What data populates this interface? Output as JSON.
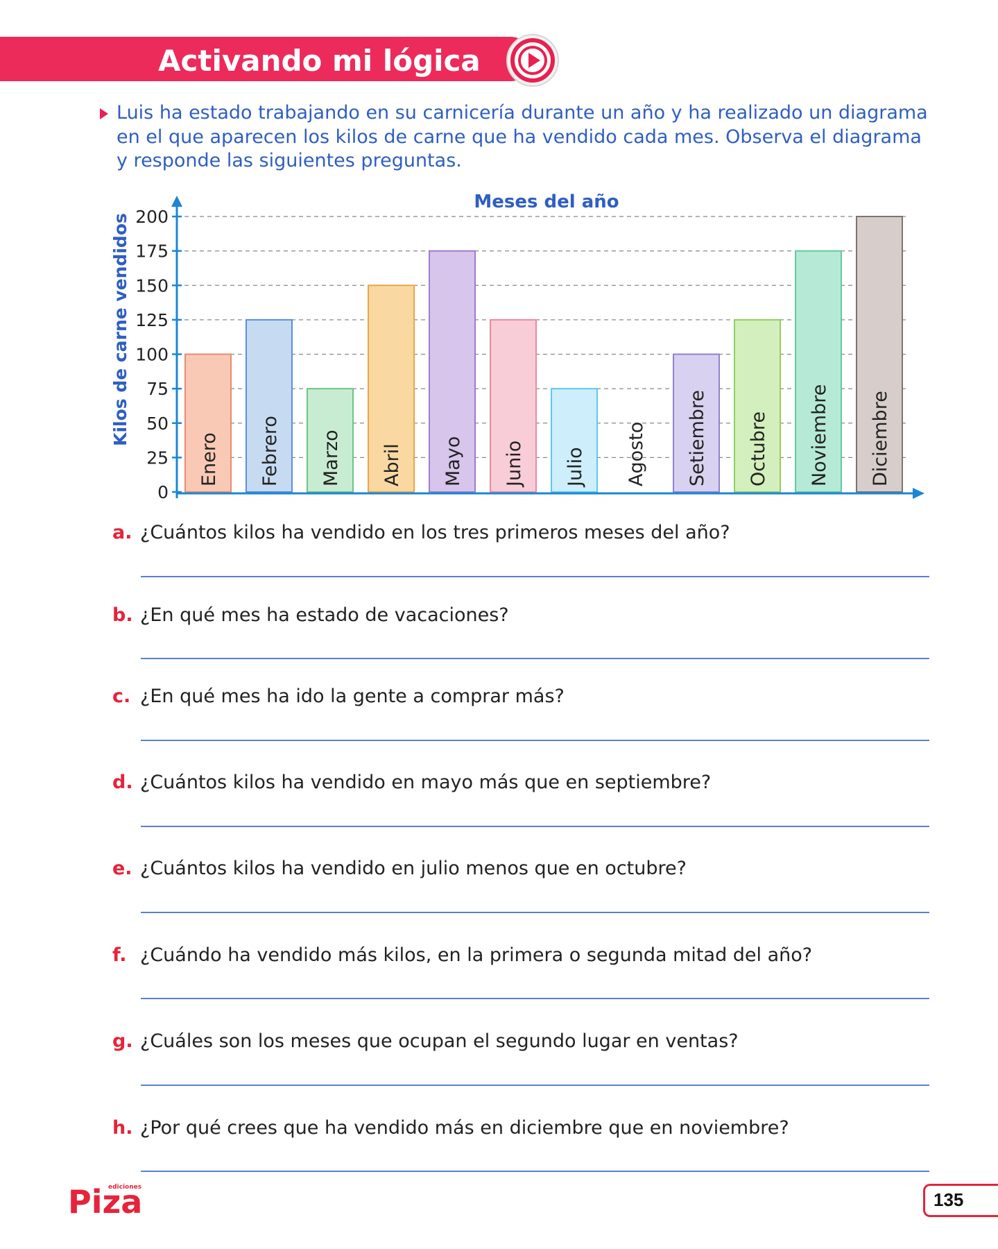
{
  "header": {
    "title": "Activando mi lógica",
    "icon": "play-icon",
    "color": "#ec2b5b"
  },
  "intro": {
    "text": "Luis ha estado trabajando en su carnicería durante un año y ha realizado un diagrama en el que aparecen los kilos de carne que ha vendido cada mes. Observa el diagrama y responde las siguientes preguntas."
  },
  "chart_data": {
    "type": "bar",
    "title": "Meses del año",
    "xlabel": "",
    "ylabel": "Kilos de carne vendidos",
    "ylim": [
      0,
      200
    ],
    "yticks": [
      0,
      25,
      50,
      75,
      100,
      125,
      150,
      175,
      200
    ],
    "grid": true,
    "categories": [
      "Enero",
      "Febrero",
      "Marzo",
      "Abril",
      "Mayo",
      "Junio",
      "Julio",
      "Agosto",
      "Setiembre",
      "Octubre",
      "Noviembre",
      "Diciembre"
    ],
    "values": [
      100,
      125,
      75,
      150,
      175,
      125,
      75,
      0,
      100,
      125,
      175,
      200
    ],
    "colors": [
      "#f9c9b6",
      "#c6dbf2",
      "#c8ecd2",
      "#f9d9a1",
      "#d7c5ec",
      "#f8cdd7",
      "#cdeefa",
      "#ffffff",
      "#d8d2f0",
      "#d3efbd",
      "#b6ead6",
      "#d7cdca"
    ],
    "strokes": [
      "#e98a6c",
      "#5b8fd8",
      "#6cc583",
      "#eba54a",
      "#9d7ccc",
      "#e98aa2",
      "#5ec8ec",
      "#999999",
      "#8e82cf",
      "#8fd05e",
      "#63c9a0",
      "#7d7371"
    ]
  },
  "questions": [
    {
      "letter": "a.",
      "text": "¿Cuántos kilos ha vendido en los tres primeros meses del año?"
    },
    {
      "letter": "b.",
      "text": "¿En qué mes ha estado de vacaciones?"
    },
    {
      "letter": "c.",
      "text": "¿En qué mes ha ido la gente a comprar más?"
    },
    {
      "letter": "d.",
      "text": "¿Cuántos kilos ha vendido en mayo más que en septiembre?"
    },
    {
      "letter": "e.",
      "text": "¿Cuántos kilos ha vendido en julio menos que en octubre?"
    },
    {
      "letter": "f.",
      "text": "¿Cuándo ha vendido más kilos, en la primera o segunda mitad del año?"
    },
    {
      "letter": "g.",
      "text": "¿Cuáles son los meses que ocupan el segundo lugar en ventas?"
    },
    {
      "letter": "h.",
      "text": "¿Por qué crees que ha vendido más en diciembre que en noviembre?"
    }
  ],
  "footer": {
    "logo_main": "Piza",
    "logo_sub": "ediciones",
    "page_number": "135"
  }
}
